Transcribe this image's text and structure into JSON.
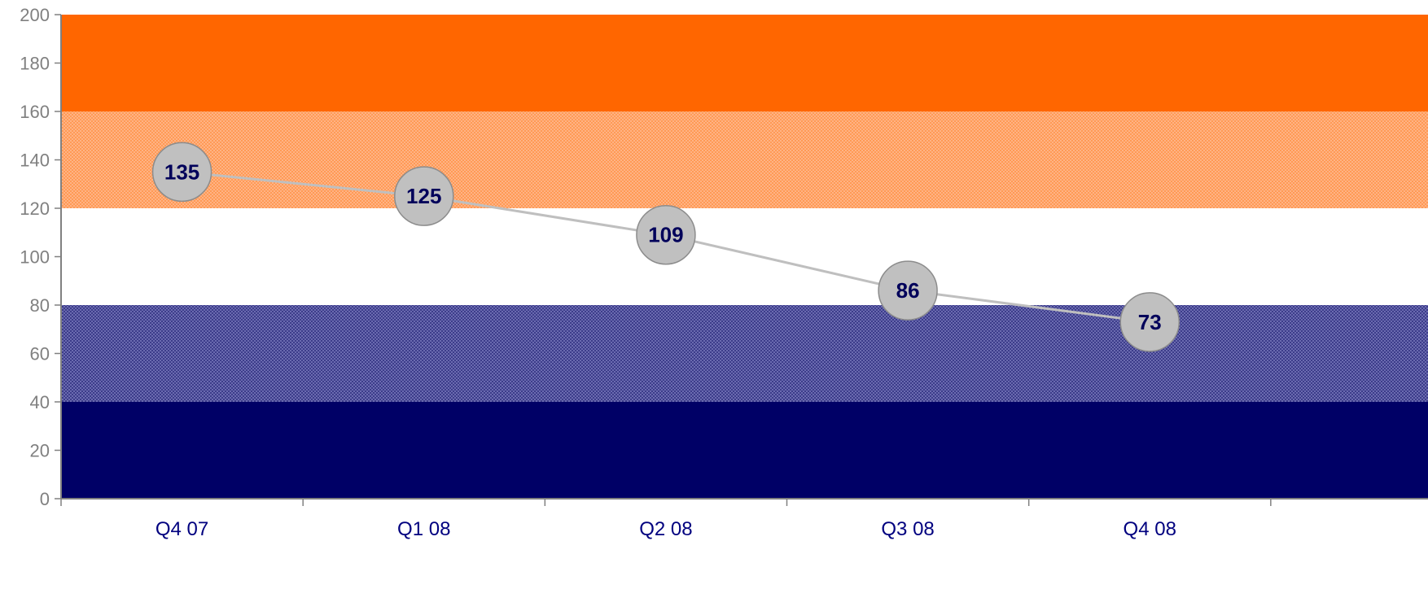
{
  "chart_data": {
    "type": "line",
    "title": "",
    "xlabel": "",
    "ylabel": "",
    "categories": [
      "Q4 07",
      "Q1 08",
      "Q2 08",
      "Q3 08",
      "Q4 08"
    ],
    "series": [
      {
        "values": [
          135,
          125,
          109,
          86,
          73
        ],
        "color": "#bfbfbf"
      }
    ],
    "ylim": [
      0,
      200
    ],
    "yticks": [
      0,
      20,
      40,
      60,
      80,
      100,
      120,
      140,
      160,
      180,
      200
    ],
    "grid": false,
    "legend": "none",
    "bands": [
      {
        "from": 0,
        "to": 40,
        "color": "#000066",
        "pattern": "solid"
      },
      {
        "from": 40,
        "to": 80,
        "color": "#5a5a9e",
        "pattern": "dotted"
      },
      {
        "from": 80,
        "to": 120,
        "color": "#ffffff",
        "pattern": "solid"
      },
      {
        "from": 120,
        "to": 160,
        "color": "#ffa46a",
        "pattern": "dotted"
      },
      {
        "from": 160,
        "to": 200,
        "color": "#ff6600",
        "pattern": "solid"
      }
    ],
    "marker_color": "#c0c0c0",
    "label_color": "#00005a"
  }
}
